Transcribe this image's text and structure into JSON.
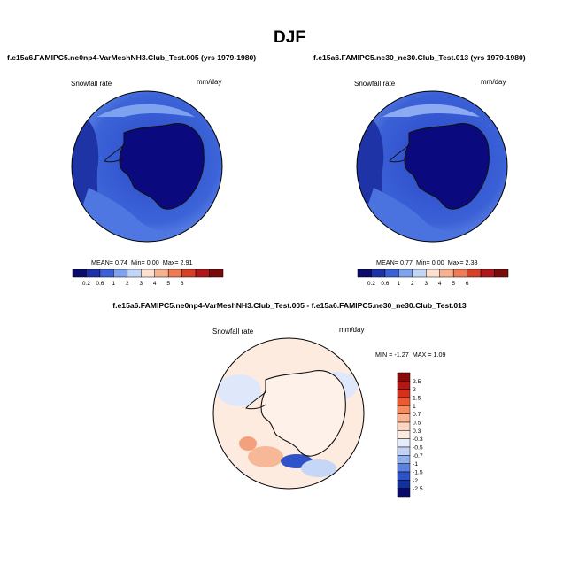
{
  "figure": {
    "title": "DJF"
  },
  "colors": {
    "deep_blue": "#0a0a7e",
    "mid_blue": "#2846c8",
    "light_blue": "#7b9ef0",
    "pale_blue": "#c5d6f5",
    "pale_orange": "#fbdccb",
    "orange": "#f47f4a",
    "dark_red": "#8a0e0e",
    "coast": "#111111"
  },
  "panels": [
    {
      "title": "f.e15a6.FAMIPC5.ne0np4-VarMeshNH3.Club_Test.005 (yrs 1979-1980)",
      "variable": "Snowfall rate",
      "units": "mm/day",
      "stats": {
        "mean_label": "MEAN=",
        "mean": "0.74",
        "min_label": "Min=",
        "min": "0.00",
        "max_label": "Max=",
        "max": "2.91"
      },
      "colorbar": {
        "labels": [
          "0.2",
          "0.6",
          "1",
          "2",
          "3",
          "4",
          "5",
          "6"
        ],
        "colors": [
          "#0b0b6e",
          "#1d30a8",
          "#3a5fd6",
          "#7ea2ef",
          "#c3d5f6",
          "#fde0cf",
          "#f6b18f",
          "#ef7a54",
          "#d83d26",
          "#b0171a",
          "#7a0b0b"
        ]
      }
    },
    {
      "title": "f.e15a6.FAMIPC5.ne30_ne30.Club_Test.013 (yrs 1979-1980)",
      "variable": "Snowfall rate",
      "units": "mm/day",
      "stats": {
        "mean_label": "MEAN=",
        "mean": "0.77",
        "min_label": "Min=",
        "min": "0.00",
        "max_label": "Max=",
        "max": "2.38"
      },
      "colorbar": {
        "labels": [
          "0.2",
          "0.6",
          "1",
          "2",
          "3",
          "4",
          "5",
          "6"
        ],
        "colors": [
          "#0b0b6e",
          "#1d30a8",
          "#3a5fd6",
          "#7ea2ef",
          "#c3d5f6",
          "#fde0cf",
          "#f6b18f",
          "#ef7a54",
          "#d83d26",
          "#b0171a",
          "#7a0b0b"
        ]
      }
    },
    {
      "title": "f.e15a6.FAMIPC5.ne0np4-VarMeshNH3.Club_Test.005 - f.e15a6.FAMIPC5.ne30_ne30.Club_Test.013",
      "variable": "Snowfall rate",
      "units": "mm/day",
      "stats": {
        "min_label": "MIN =",
        "min": "-1.27",
        "max_label": "MAX =",
        "max": "1.09"
      },
      "colorbar": {
        "labels": [
          "2.5",
          "2",
          "1.5",
          "1",
          "0.7",
          "0.5",
          "0.3",
          "-0.3",
          "-0.5",
          "-0.7",
          "-1",
          "-1.5",
          "-2",
          "-2.5"
        ],
        "colors": [
          "#8a0b0b",
          "#b41714",
          "#d6301d",
          "#ed5a2f",
          "#f78b5e",
          "#fab493",
          "#fcd5c0",
          "#fdebe0",
          "#e5edfb",
          "#c2d3f6",
          "#93b0ef",
          "#5c82e0",
          "#2d51c8",
          "#1230a0",
          "#0a0a6b"
        ]
      }
    }
  ]
}
